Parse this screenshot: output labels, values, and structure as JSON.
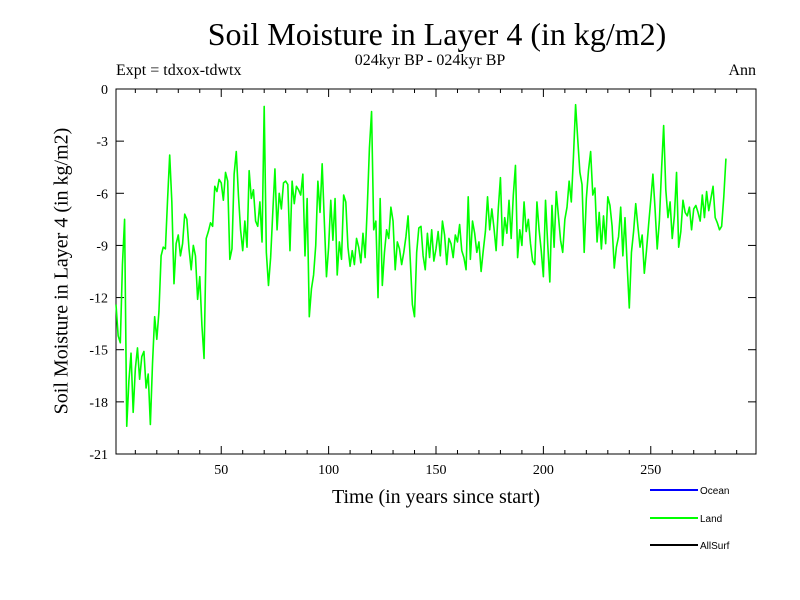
{
  "chart_data": {
    "type": "line",
    "title": "Soil Moisture in Layer 4 (in kg/m2)",
    "subtitle": "024kyr BP - 024kyr BP",
    "expt_label": "Expt = tdxox-tdwtx",
    "period_label": "Ann",
    "xlabel": "Time (in years since start)",
    "ylabel": "Soil Moisture in Layer 4 (in kg/m2)",
    "xlim": [
      1,
      299
    ],
    "ylim": [
      -21,
      0
    ],
    "xticks": [
      50,
      100,
      150,
      200,
      250
    ],
    "yticks": [
      0,
      -3,
      -6,
      -9,
      -12,
      -15,
      -18,
      -21
    ],
    "grid": false,
    "legend_position": "bottom-right",
    "legend": [
      {
        "name": "Ocean",
        "color": "#0000ff"
      },
      {
        "name": "Land",
        "color": "#00ff00"
      },
      {
        "name": "AllSurf",
        "color": "#000000"
      }
    ],
    "series": [
      {
        "name": "Land",
        "color": "#00ff00",
        "x_start": 1,
        "values": [
          -12.4,
          -14.2,
          -14.6,
          -10.1,
          -7.5,
          -19.4,
          -16.8,
          -15.2,
          -18.6,
          -16.1,
          -14.9,
          -16.7,
          -15.4,
          -15.1,
          -17.2,
          -16.4,
          -19.3,
          -15.8,
          -13.1,
          -14.4,
          -12.8,
          -9.6,
          -9.1,
          -9.2,
          -6.4,
          -3.8,
          -6.5,
          -11.2,
          -8.9,
          -8.4,
          -9.6,
          -8.9,
          -7.2,
          -7.5,
          -9.2,
          -10.4,
          -9.0,
          -9.6,
          -12.1,
          -10.8,
          -13.6,
          -15.5,
          -8.6,
          -8.2,
          -7.7,
          -7.9,
          -5.6,
          -5.9,
          -5.2,
          -5.4,
          -6.4,
          -4.8,
          -5.3,
          -9.8,
          -9.2,
          -4.9,
          -3.6,
          -6.1,
          -8.1,
          -9.3,
          -7.6,
          -9.1,
          -4.7,
          -6.3,
          -5.8,
          -7.6,
          -7.9,
          -6.5,
          -8.8,
          -1.0,
          -9.4,
          -11.3,
          -9.7,
          -7.1,
          -4.6,
          -8.1,
          -6.0,
          -6.9,
          -5.4,
          -5.3,
          -5.5,
          -9.3,
          -5.3,
          -6.6,
          -5.6,
          -5.8,
          -6.1,
          -4.9,
          -9.6,
          -6.3,
          -13.1,
          -11.5,
          -10.7,
          -9.0,
          -5.3,
          -7.1,
          -4.3,
          -7.6,
          -10.8,
          -9.1,
          -6.4,
          -8.7,
          -6.3,
          -10.7,
          -8.8,
          -9.8,
          -6.1,
          -6.5,
          -9.1,
          -10.2,
          -9.3,
          -10.1,
          -8.6,
          -9.1,
          -10.0,
          -8.3,
          -9.7,
          -6.8,
          -3.4,
          -1.3,
          -8.1,
          -7.6,
          -12.0,
          -6.3,
          -11.3,
          -9.4,
          -8.1,
          -8.6,
          -6.8,
          -7.6,
          -10.4,
          -8.8,
          -9.2,
          -10.1,
          -9.4,
          -8.5,
          -7.3,
          -9.8,
          -12.4,
          -13.1,
          -9.4,
          -8.0,
          -7.9,
          -9.6,
          -10.4,
          -8.3,
          -9.7,
          -8.1,
          -9.9,
          -9.2,
          -8.2,
          -9.6,
          -7.6,
          -8.4,
          -10.1,
          -8.6,
          -8.9,
          -9.7,
          -8.4,
          -8.8,
          -7.8,
          -9.3,
          -9.7,
          -10.4,
          -6.2,
          -9.8,
          -7.6,
          -8.3,
          -9.4,
          -8.8,
          -10.5,
          -9.3,
          -8.2,
          -6.2,
          -8.1,
          -6.9,
          -8.0,
          -9.3,
          -6.9,
          -5.1,
          -9.0,
          -7.4,
          -8.3,
          -6.4,
          -8.6,
          -6.1,
          -4.4,
          -9.7,
          -8.1,
          -9.0,
          -6.5,
          -8.2,
          -7.5,
          -8.9,
          -9.9,
          -10.1,
          -6.5,
          -8.1,
          -9.3,
          -10.8,
          -6.4,
          -8.9,
          -11.1,
          -6.7,
          -9.1,
          -5.9,
          -7.3,
          -8.7,
          -9.4,
          -7.5,
          -6.8,
          -5.3,
          -6.5,
          -3.9,
          -0.9,
          -2.9,
          -4.8,
          -5.5,
          -9.4,
          -6.3,
          -4.7,
          -3.6,
          -6.1,
          -5.7,
          -8.8,
          -7.1,
          -9.2,
          -7.3,
          -8.9,
          -6.2,
          -6.7,
          -7.9,
          -10.3,
          -9.1,
          -8.5,
          -6.8,
          -9.6,
          -7.4,
          -10.1,
          -12.6,
          -9.4,
          -8.2,
          -6.6,
          -7.9,
          -9.1,
          -8.4,
          -10.6,
          -9.3,
          -7.8,
          -6.4,
          -4.9,
          -6.9,
          -9.2,
          -7.6,
          -4.7,
          -2.1,
          -5.8,
          -7.4,
          -6.5,
          -8.6,
          -7.3,
          -4.8,
          -9.1,
          -8.2,
          -6.4,
          -7.1,
          -7.3,
          -6.8,
          -8.1,
          -6.9,
          -6.7,
          -7.1,
          -7.6,
          -6.1,
          -7.4,
          -5.9,
          -7.0,
          -6.3,
          -5.6,
          -7.4,
          -7.7,
          -8.1,
          -7.9,
          -6.2,
          -4.0
        ]
      }
    ]
  }
}
